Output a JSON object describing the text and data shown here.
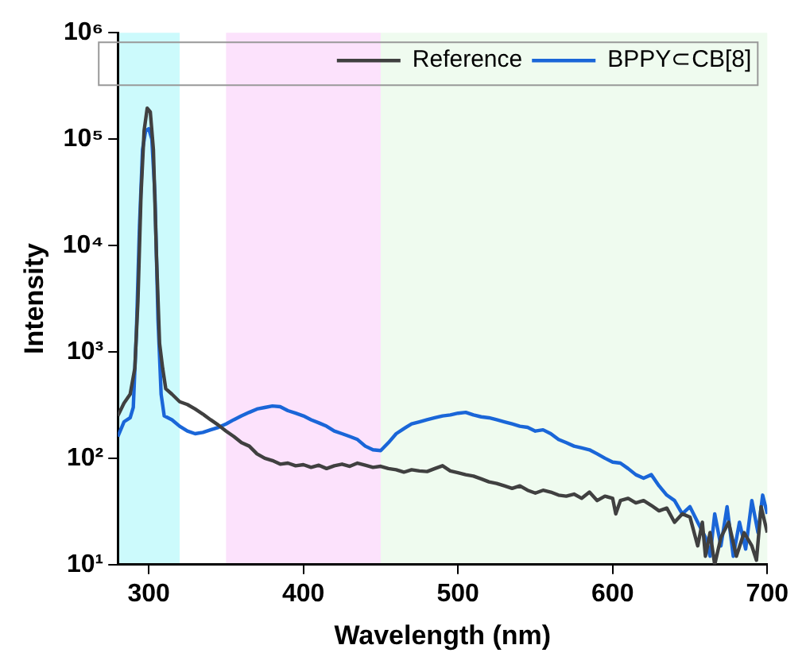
{
  "chart_data": {
    "type": "line",
    "xlabel": "Wavelength (nm)",
    "ylabel": "Intensity",
    "log": "y",
    "xlim": [
      280,
      700
    ],
    "xticks": [
      300,
      400,
      500,
      600,
      700
    ],
    "ylim": [
      10,
      1000000
    ],
    "yticks": [
      {
        "value": 10,
        "label": "10¹"
      },
      {
        "value": 100,
        "label": "10²"
      },
      {
        "value": 1000,
        "label": "10³"
      },
      {
        "value": 10000,
        "label": "10⁴"
      },
      {
        "value": 100000,
        "label": "10⁵"
      },
      {
        "value": 1000000,
        "label": "10⁶"
      }
    ],
    "grid": false,
    "legend": "top right",
    "marker": "none",
    "line_style": "solid",
    "bands": [
      {
        "axis": "x",
        "from": 280,
        "to": 320,
        "color": "#ccfafc"
      },
      {
        "axis": "x",
        "from": 350,
        "to": 450,
        "color": "#fce2fc"
      },
      {
        "axis": "x",
        "from": 450,
        "to": 700,
        "color": "#effbef"
      }
    ],
    "series": [
      {
        "name": "Reference",
        "color": "#404040",
        "x": [
          280,
          284,
          288,
          291,
          293,
          295,
          297,
          299,
          301,
          303,
          305,
          307,
          309,
          311,
          315,
          320,
          325,
          330,
          335,
          340,
          345,
          350,
          355,
          360,
          365,
          370,
          375,
          380,
          385,
          390,
          395,
          400,
          405,
          410,
          415,
          420,
          425,
          430,
          435,
          440,
          445,
          450,
          455,
          460,
          465,
          470,
          475,
          480,
          485,
          490,
          495,
          500,
          505,
          510,
          515,
          520,
          525,
          530,
          535,
          540,
          545,
          550,
          555,
          560,
          565,
          570,
          575,
          580,
          585,
          590,
          595,
          600,
          602,
          605,
          610,
          615,
          620,
          625,
          630,
          635,
          640,
          645,
          650,
          655,
          658,
          660,
          663,
          666,
          670,
          675,
          680,
          685,
          690,
          693,
          696,
          700
        ],
        "values": [
          250,
          330,
          400,
          700,
          3000,
          30000,
          120000,
          195000,
          180000,
          80000,
          8000,
          1200,
          700,
          450,
          400,
          340,
          320,
          290,
          260,
          230,
          205,
          180,
          160,
          140,
          130,
          110,
          100,
          95,
          88,
          90,
          85,
          87,
          82,
          86,
          80,
          85,
          88,
          84,
          90,
          86,
          82,
          84,
          80,
          78,
          74,
          78,
          76,
          75,
          80,
          85,
          76,
          73,
          70,
          68,
          64,
          60,
          58,
          55,
          52,
          55,
          50,
          47,
          50,
          48,
          45,
          44,
          46,
          42,
          48,
          40,
          44,
          42,
          30,
          40,
          42,
          38,
          40,
          36,
          32,
          34,
          25,
          30,
          28,
          15,
          25,
          12,
          20,
          10,
          18,
          25,
          12,
          20,
          15,
          11,
          35,
          20
        ]
      },
      {
        "name": "BPPY⊂CB[8]",
        "color": "#1a66d8",
        "x": [
          280,
          284,
          288,
          290,
          292,
          294,
          296,
          298,
          300,
          302,
          304,
          306,
          308,
          310,
          315,
          320,
          325,
          330,
          335,
          340,
          345,
          350,
          355,
          360,
          365,
          370,
          375,
          380,
          385,
          390,
          395,
          400,
          405,
          410,
          415,
          420,
          425,
          430,
          435,
          440,
          445,
          450,
          455,
          460,
          465,
          470,
          475,
          480,
          485,
          490,
          495,
          500,
          505,
          510,
          515,
          520,
          525,
          530,
          535,
          540,
          545,
          550,
          555,
          560,
          565,
          570,
          575,
          580,
          585,
          590,
          595,
          600,
          605,
          610,
          615,
          620,
          625,
          630,
          635,
          640,
          645,
          650,
          655,
          660,
          663,
          666,
          670,
          674,
          678,
          682,
          686,
          690,
          694,
          697,
          700
        ],
        "values": [
          160,
          220,
          240,
          300,
          1500,
          15000,
          80000,
          120000,
          125000,
          100000,
          30000,
          2000,
          400,
          250,
          230,
          200,
          180,
          170,
          175,
          185,
          195,
          210,
          230,
          250,
          270,
          290,
          300,
          310,
          305,
          280,
          265,
          250,
          230,
          215,
          200,
          180,
          170,
          160,
          150,
          130,
          120,
          118,
          140,
          170,
          190,
          210,
          220,
          230,
          240,
          250,
          255,
          265,
          270,
          255,
          245,
          240,
          230,
          220,
          210,
          200,
          195,
          180,
          185,
          170,
          150,
          140,
          130,
          125,
          120,
          110,
          100,
          92,
          90,
          80,
          70,
          65,
          70,
          55,
          45,
          40,
          30,
          35,
          25,
          18,
          12,
          30,
          15,
          35,
          12,
          25,
          14,
          40,
          20,
          45,
          30
        ]
      }
    ]
  }
}
